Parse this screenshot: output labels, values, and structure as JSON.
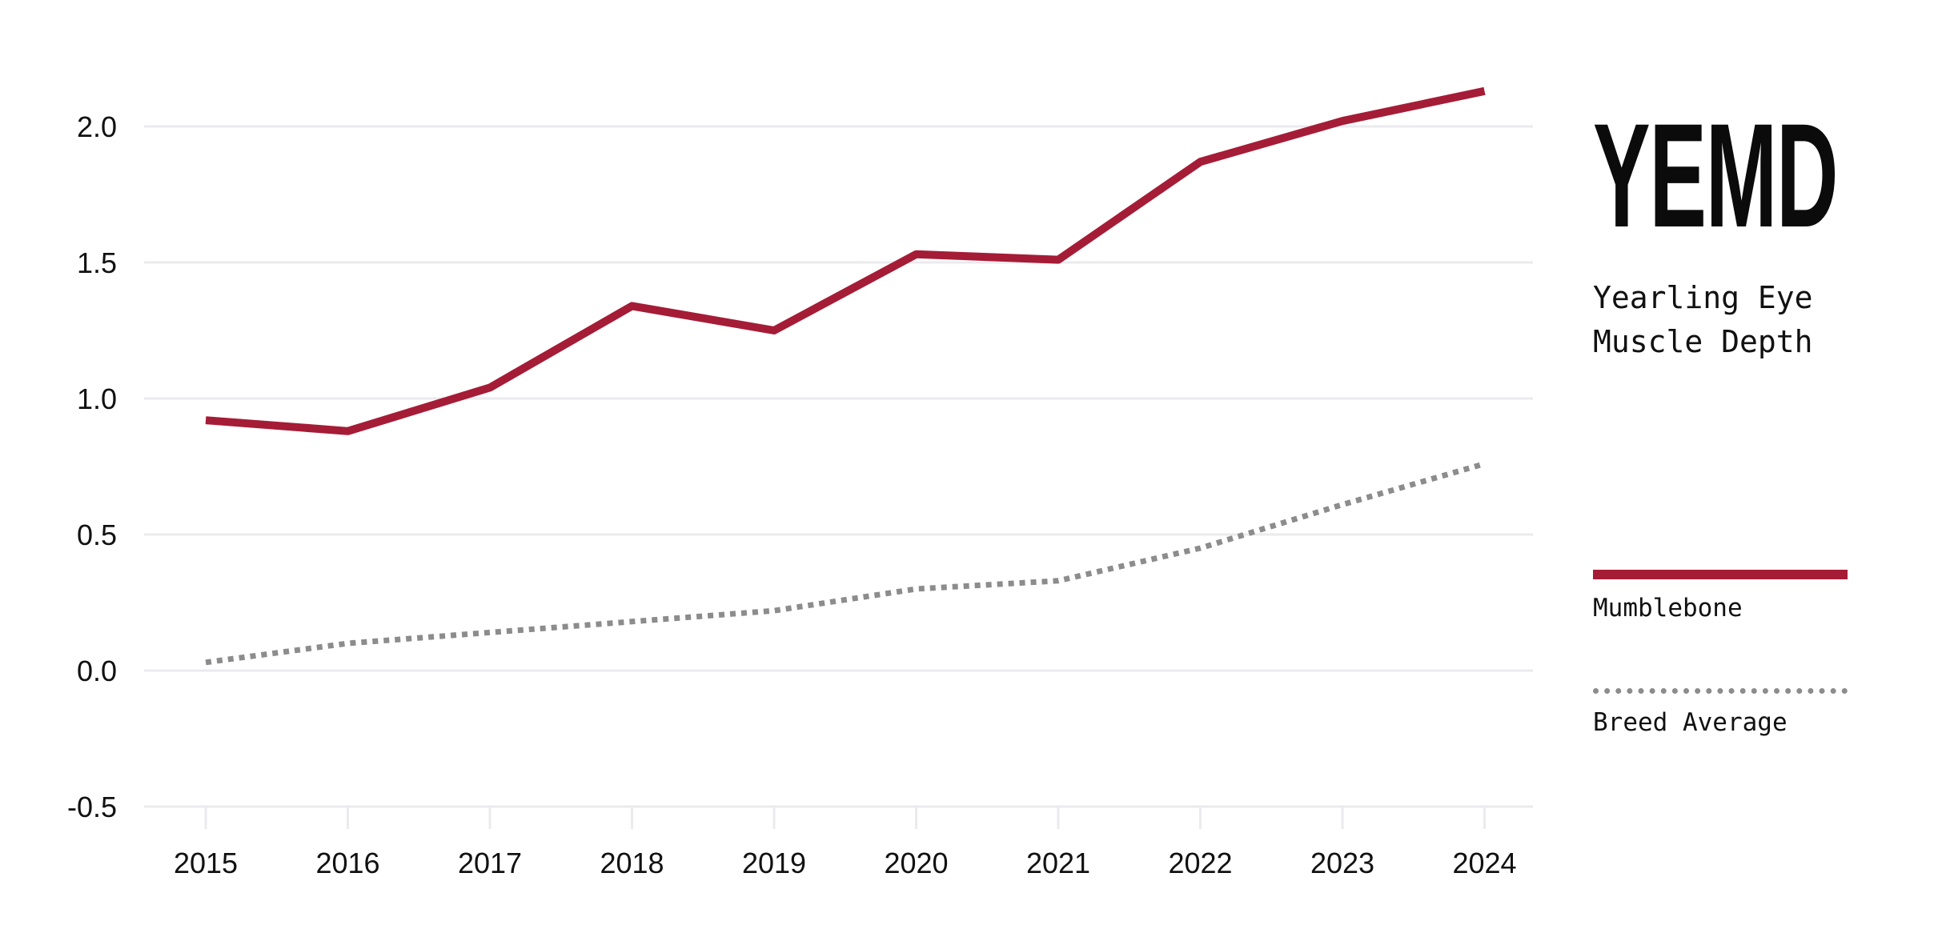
{
  "chart_data": {
    "type": "line",
    "title": "YEMD",
    "subtitle": "Yearling Eye Muscle Depth",
    "xlabel": "",
    "ylabel": "",
    "x": [
      "2015",
      "2016",
      "2017",
      "2018",
      "2019",
      "2020",
      "2021",
      "2022",
      "2023",
      "2024"
    ],
    "ylim": [
      -0.5,
      2.0
    ],
    "yticks": [
      "2.0",
      "1.5",
      "1.0",
      "0.5",
      "0.0",
      "-0.5"
    ],
    "grid": true,
    "legend_placement": "right",
    "series": [
      {
        "name": "Mumblebone",
        "style": "solid",
        "color": "#a51c36",
        "values": [
          0.92,
          0.88,
          1.04,
          1.34,
          1.25,
          1.53,
          1.51,
          1.87,
          2.02,
          2.13
        ]
      },
      {
        "name": "Breed Average",
        "style": "dotted",
        "color": "#8c8c8c",
        "values": [
          0.03,
          0.1,
          0.14,
          0.18,
          0.22,
          0.3,
          0.33,
          0.45,
          0.61,
          0.76
        ]
      }
    ]
  }
}
